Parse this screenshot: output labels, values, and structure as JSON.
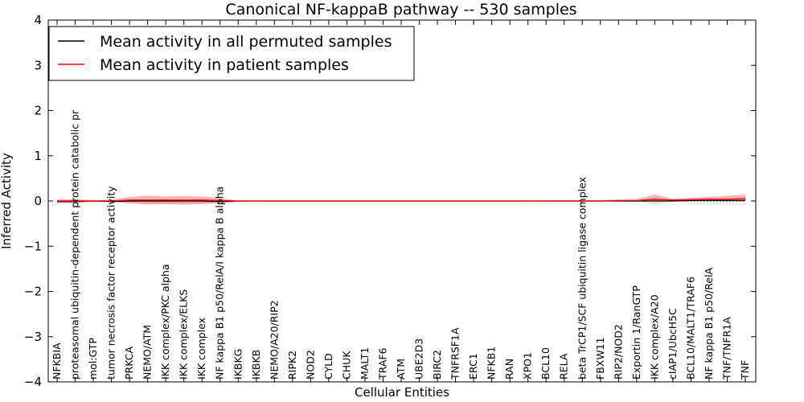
{
  "chart_data": {
    "type": "line",
    "title": "Canonical NF-kappaB pathway -- 530 samples",
    "xlabel": "Cellular Entities",
    "ylabel": "Inferred Activity",
    "ylim": [
      -4,
      4
    ],
    "yticks": [
      -4,
      -3,
      -2,
      -1,
      0,
      1,
      2,
      3,
      4
    ],
    "ytick_labels": [
      "−4",
      "−3",
      "−2",
      "−1",
      "0",
      "1",
      "2",
      "3",
      "4"
    ],
    "legend_position": "top-left",
    "categories": [
      "NFKBIA",
      "proteasomal ubiquitin-dependent protein catabolic pr",
      "mol:GTP",
      "tumor necrosis factor receptor activity",
      "PRKCA",
      "NEMO/ATM",
      "IKK complex/PKC alpha",
      "IKK complex/ELKS",
      "IKK complex",
      "NF kappa B1 p50/RelA/I kappa B alpha",
      "IKBKG",
      "IKBKB",
      "NEMO/A20/RIP2",
      "RIPK2",
      "NOD2",
      "CYLD",
      "CHUK",
      "MALT1",
      "TRAF6",
      "ATM",
      "UBE2D3",
      "BIRC2",
      "TNFRSF1A",
      "ERC1",
      "NFKB1",
      "RAN",
      "XPO1",
      "BCL10",
      "RELA",
      "beta TrCP1/SCF ubiquitin ligase complex",
      "FBXW11",
      "RIP2/NOD2",
      "Exportin 1/RanGTP",
      "IKK complex/A20",
      "cIAP1/UbcH5C",
      "BCL10/MALT1/TRAF6",
      "NF kappa B1 p50/RelA",
      "TNF/TNFR1A",
      "TNF"
    ],
    "series": [
      {
        "name": "Mean activity in all permuted samples",
        "color": "#000000",
        "values": [
          -0.01,
          -0.01,
          0.0,
          -0.01,
          0.0,
          0.0,
          0.0,
          0.0,
          0.0,
          -0.01,
          0.0,
          0.0,
          0.0,
          0.0,
          0.0,
          0.0,
          0.0,
          0.0,
          0.0,
          0.0,
          0.0,
          0.0,
          0.0,
          0.0,
          0.0,
          0.0,
          0.0,
          0.0,
          0.0,
          0.0,
          0.0,
          0.0,
          0.0,
          0.0,
          0.0,
          0.01,
          0.01,
          0.01,
          0.01
        ],
        "band_low": [
          -0.06,
          -0.06,
          -0.02,
          -0.03,
          -0.04,
          -0.05,
          -0.05,
          -0.05,
          -0.05,
          -0.06,
          -0.03,
          -0.01,
          -0.01,
          -0.01,
          -0.01,
          -0.01,
          -0.01,
          -0.01,
          -0.01,
          -0.01,
          -0.01,
          -0.01,
          -0.01,
          -0.01,
          -0.01,
          -0.01,
          -0.01,
          -0.01,
          -0.01,
          -0.01,
          -0.01,
          -0.01,
          -0.01,
          -0.08,
          -0.01,
          -0.01,
          -0.01,
          -0.01,
          -0.01
        ],
        "band_high": [
          0.04,
          0.04,
          0.02,
          0.02,
          0.03,
          0.03,
          0.03,
          0.03,
          0.03,
          0.03,
          0.01,
          0.01,
          0.01,
          0.01,
          0.01,
          0.01,
          0.01,
          0.01,
          0.01,
          0.01,
          0.01,
          0.01,
          0.01,
          0.01,
          0.01,
          0.01,
          0.01,
          0.01,
          0.01,
          0.01,
          0.01,
          0.01,
          0.01,
          0.05,
          0.02,
          0.02,
          0.03,
          0.03,
          0.03
        ]
      },
      {
        "name": "Mean activity in patient samples",
        "color": "#ff0000",
        "values": [
          0.0,
          0.0,
          0.0,
          0.0,
          0.02,
          0.02,
          0.02,
          0.02,
          0.02,
          0.01,
          0.0,
          0.0,
          0.0,
          0.0,
          0.0,
          0.0,
          0.0,
          0.0,
          0.0,
          0.0,
          0.0,
          0.0,
          0.0,
          0.0,
          0.0,
          0.0,
          0.0,
          0.0,
          0.0,
          0.0,
          0.0,
          0.01,
          0.01,
          0.04,
          0.02,
          0.03,
          0.04,
          0.04,
          0.05
        ],
        "band_low": [
          -0.04,
          -0.04,
          -0.01,
          -0.01,
          -0.05,
          -0.08,
          -0.07,
          -0.08,
          -0.07,
          -0.04,
          -0.01,
          -0.01,
          -0.01,
          -0.01,
          -0.01,
          -0.01,
          -0.01,
          -0.01,
          -0.01,
          -0.01,
          -0.01,
          -0.01,
          -0.01,
          -0.01,
          -0.01,
          -0.01,
          -0.01,
          -0.01,
          -0.01,
          -0.01,
          -0.01,
          -0.01,
          -0.01,
          0.0,
          0.0,
          0.0,
          0.0,
          0.0,
          0.0
        ],
        "band_high": [
          0.03,
          0.03,
          0.02,
          0.03,
          0.09,
          0.12,
          0.1,
          0.11,
          0.1,
          0.06,
          0.01,
          0.01,
          0.01,
          0.01,
          0.01,
          0.01,
          0.01,
          0.01,
          0.01,
          0.01,
          0.01,
          0.01,
          0.01,
          0.01,
          0.01,
          0.01,
          0.01,
          0.02,
          0.02,
          0.02,
          0.02,
          0.03,
          0.04,
          0.14,
          0.05,
          0.07,
          0.09,
          0.11,
          0.14
        ]
      }
    ],
    "baseline": 0
  }
}
